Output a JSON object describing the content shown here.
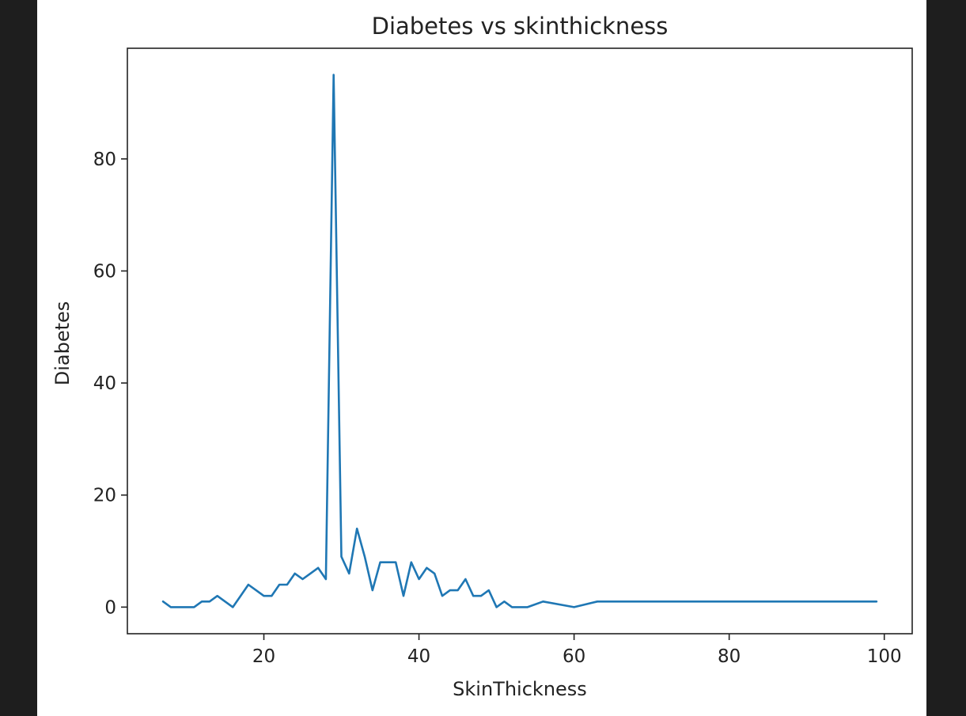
{
  "chart_data": {
    "type": "line",
    "title": "Diabetes vs  skinthickness",
    "xlabel": "SkinThickness",
    "ylabel": "Diabetes",
    "xlim": [
      2.4,
      103.6
    ],
    "ylim": [
      -4.75,
      99.75
    ],
    "xticks": [
      20,
      40,
      60,
      80,
      100
    ],
    "yticks": [
      0,
      20,
      40,
      60,
      80
    ],
    "grid": false,
    "legend": "none",
    "series": [
      {
        "color": "#1f77b4",
        "x": [
          7,
          8,
          10,
          11,
          12,
          13,
          14,
          15,
          16,
          17,
          18,
          19,
          20,
          21,
          22,
          23,
          24,
          25,
          26,
          27,
          28,
          29,
          30,
          31,
          32,
          33,
          34,
          35,
          36,
          37,
          38,
          39,
          40,
          41,
          42,
          43,
          44,
          45,
          46,
          47,
          48,
          49,
          50,
          51,
          52,
          54,
          56,
          60,
          63,
          99
        ],
        "y": [
          1,
          0,
          0,
          0,
          1,
          1,
          2,
          1,
          0,
          2,
          4,
          3,
          2,
          2,
          4,
          4,
          6,
          5,
          6,
          7,
          5,
          95,
          9,
          6,
          14,
          9,
          3,
          8,
          8,
          8,
          2,
          8,
          5,
          7,
          6,
          2,
          3,
          3,
          5,
          2,
          2,
          3,
          0,
          1,
          0,
          0,
          1,
          0,
          1,
          1
        ]
      }
    ]
  }
}
